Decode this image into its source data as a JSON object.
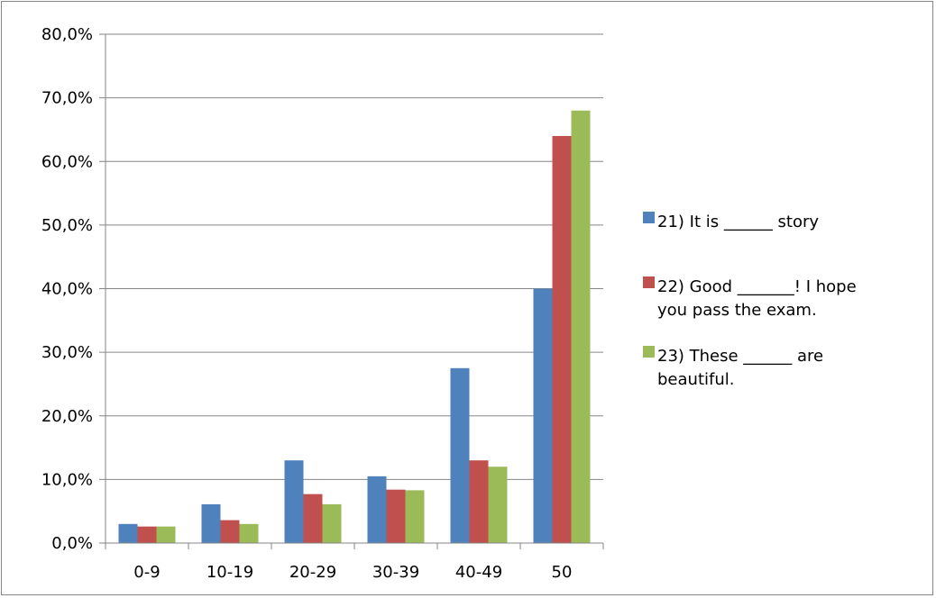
{
  "chart_data": {
    "type": "bar",
    "categories": [
      "0-9",
      "10-19",
      "20-29",
      "30-39",
      "40-49",
      "50"
    ],
    "series": [
      {
        "name": "21) It is ______ story",
        "legend_lines": [
          "21) It is ______ story"
        ],
        "color": "#4F81BD",
        "values": [
          3.0,
          6.1,
          13.0,
          10.5,
          27.5,
          40.0
        ]
      },
      {
        "name": "22) Good _______! I hope you pass the exam.",
        "legend_lines": [
          "22) Good _______! I hope",
          "you pass the exam."
        ],
        "color": "#C0504D",
        "values": [
          2.6,
          3.6,
          7.7,
          8.4,
          13.0,
          64.0
        ]
      },
      {
        "name": "23) These ______ are beautiful.",
        "legend_lines": [
          "23) These ______ are",
          "beautiful."
        ],
        "color": "#9BBB59",
        "values": [
          2.6,
          3.0,
          6.1,
          8.3,
          12.0,
          68.0
        ]
      }
    ],
    "y_ticks": [
      "0,0%",
      "10,0%",
      "20,0%",
      "30,0%",
      "40,0%",
      "50,0%",
      "60,0%",
      "70,0%",
      "80,0%"
    ],
    "ylim": [
      0,
      80
    ],
    "title": "",
    "xlabel": "",
    "ylabel": "",
    "grid": true,
    "legend_position": "right"
  }
}
